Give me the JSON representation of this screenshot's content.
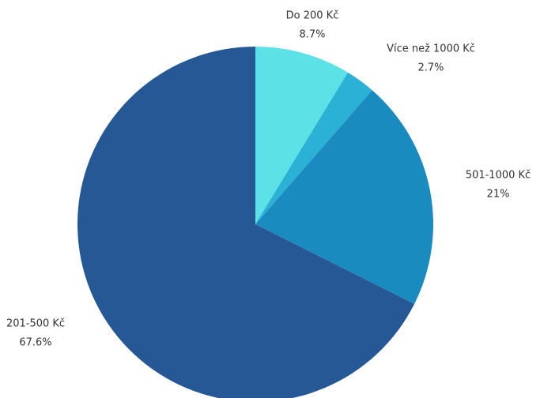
{
  "chart_data": {
    "type": "pie",
    "categories": [
      "Do 200 Kč",
      "Více než 1000 Kč",
      "501-1000 Kč",
      "201-500 Kč"
    ],
    "values": [
      8.7,
      2.7,
      21,
      67.6
    ],
    "value_labels": [
      "8.7%",
      "2.7%",
      "21%",
      "67.6%"
    ],
    "colors": [
      "#5ce1e6",
      "#2bb0d6",
      "#1a8bbf",
      "#265896"
    ]
  }
}
